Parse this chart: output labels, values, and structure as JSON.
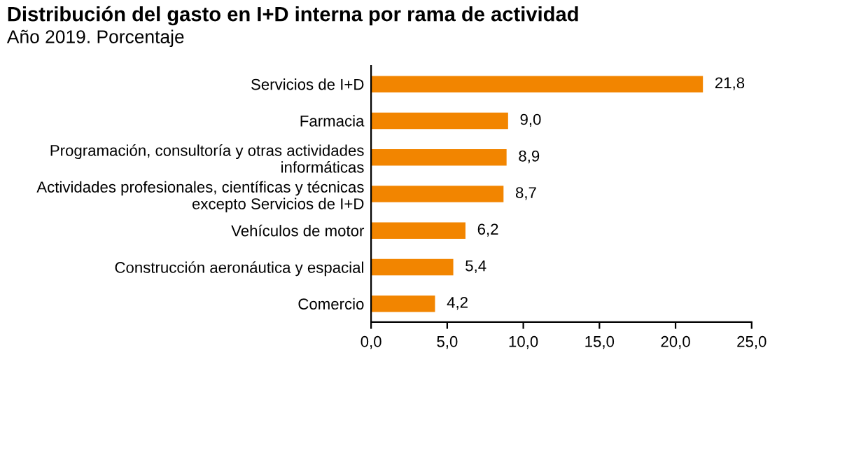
{
  "chart_data": {
    "type": "bar",
    "orientation": "horizontal",
    "title": "Distribución del gasto en I+D interna por rama de actividad",
    "subtitle": "Año 2019. Porcentaje",
    "categories": [
      "Servicios de I+D",
      "Farmacia",
      "Programación, consultoría y otras actividades\ninformáticas",
      "Actividades profesionales, científicas y técnicas\nexcepto Servicios de I+D",
      "Vehículos de motor",
      "Construcción aeronáutica y espacial",
      "Comercio"
    ],
    "values": [
      21.8,
      9.0,
      8.9,
      8.7,
      6.2,
      5.4,
      4.2
    ],
    "value_labels": [
      "21,8",
      "9,0",
      "8,9",
      "8,7",
      "6,2",
      "5,4",
      "4,2"
    ],
    "color": "#f28500",
    "xlim": [
      0,
      25
    ],
    "xticks": [
      {
        "value": 0,
        "label": "0,0"
      },
      {
        "value": 5,
        "label": "5,0"
      },
      {
        "value": 10,
        "label": "10,0"
      },
      {
        "value": 15,
        "label": "15,0"
      },
      {
        "value": 20,
        "label": "20,0"
      },
      {
        "value": 25,
        "label": "25,0"
      }
    ],
    "grid": false,
    "legend": false
  }
}
